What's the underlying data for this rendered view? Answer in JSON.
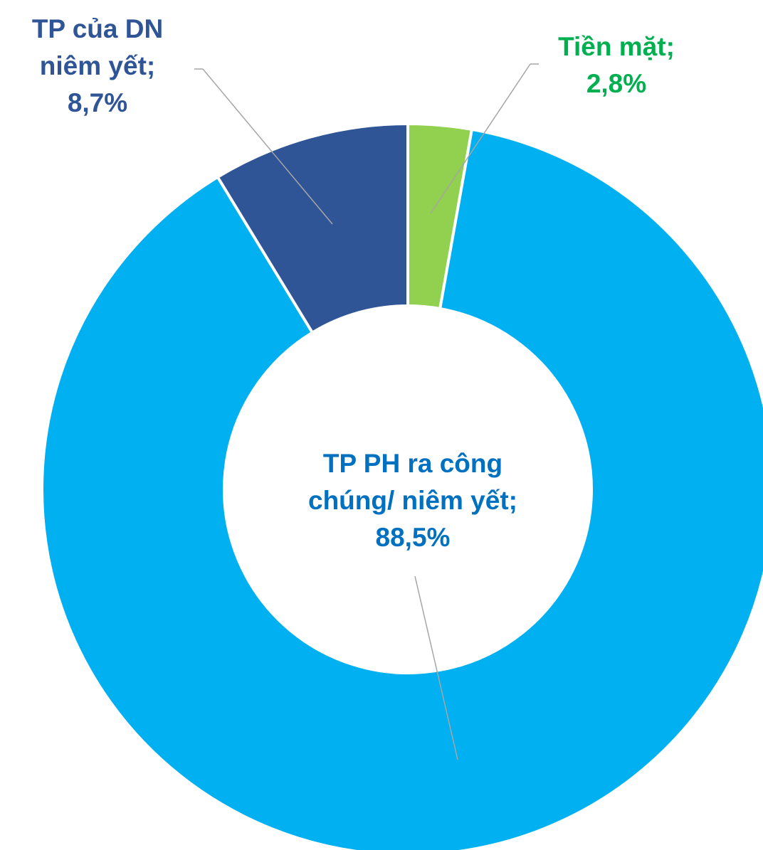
{
  "chart_data": {
    "type": "donut",
    "categories": [
      "Tiền mặt;",
      "TP PH ra công chúng/ niêm yết;",
      "TP của DN niêm yết;"
    ],
    "values": [
      2.8,
      88.5,
      8.7
    ],
    "value_labels": [
      "2,8%",
      "88,5%",
      "8,7%"
    ],
    "colors": [
      "#92d050",
      "#00b0f0",
      "#2f5597"
    ],
    "label_colors": [
      "#00b050",
      "#0070c0",
      "#2f5597"
    ]
  }
}
